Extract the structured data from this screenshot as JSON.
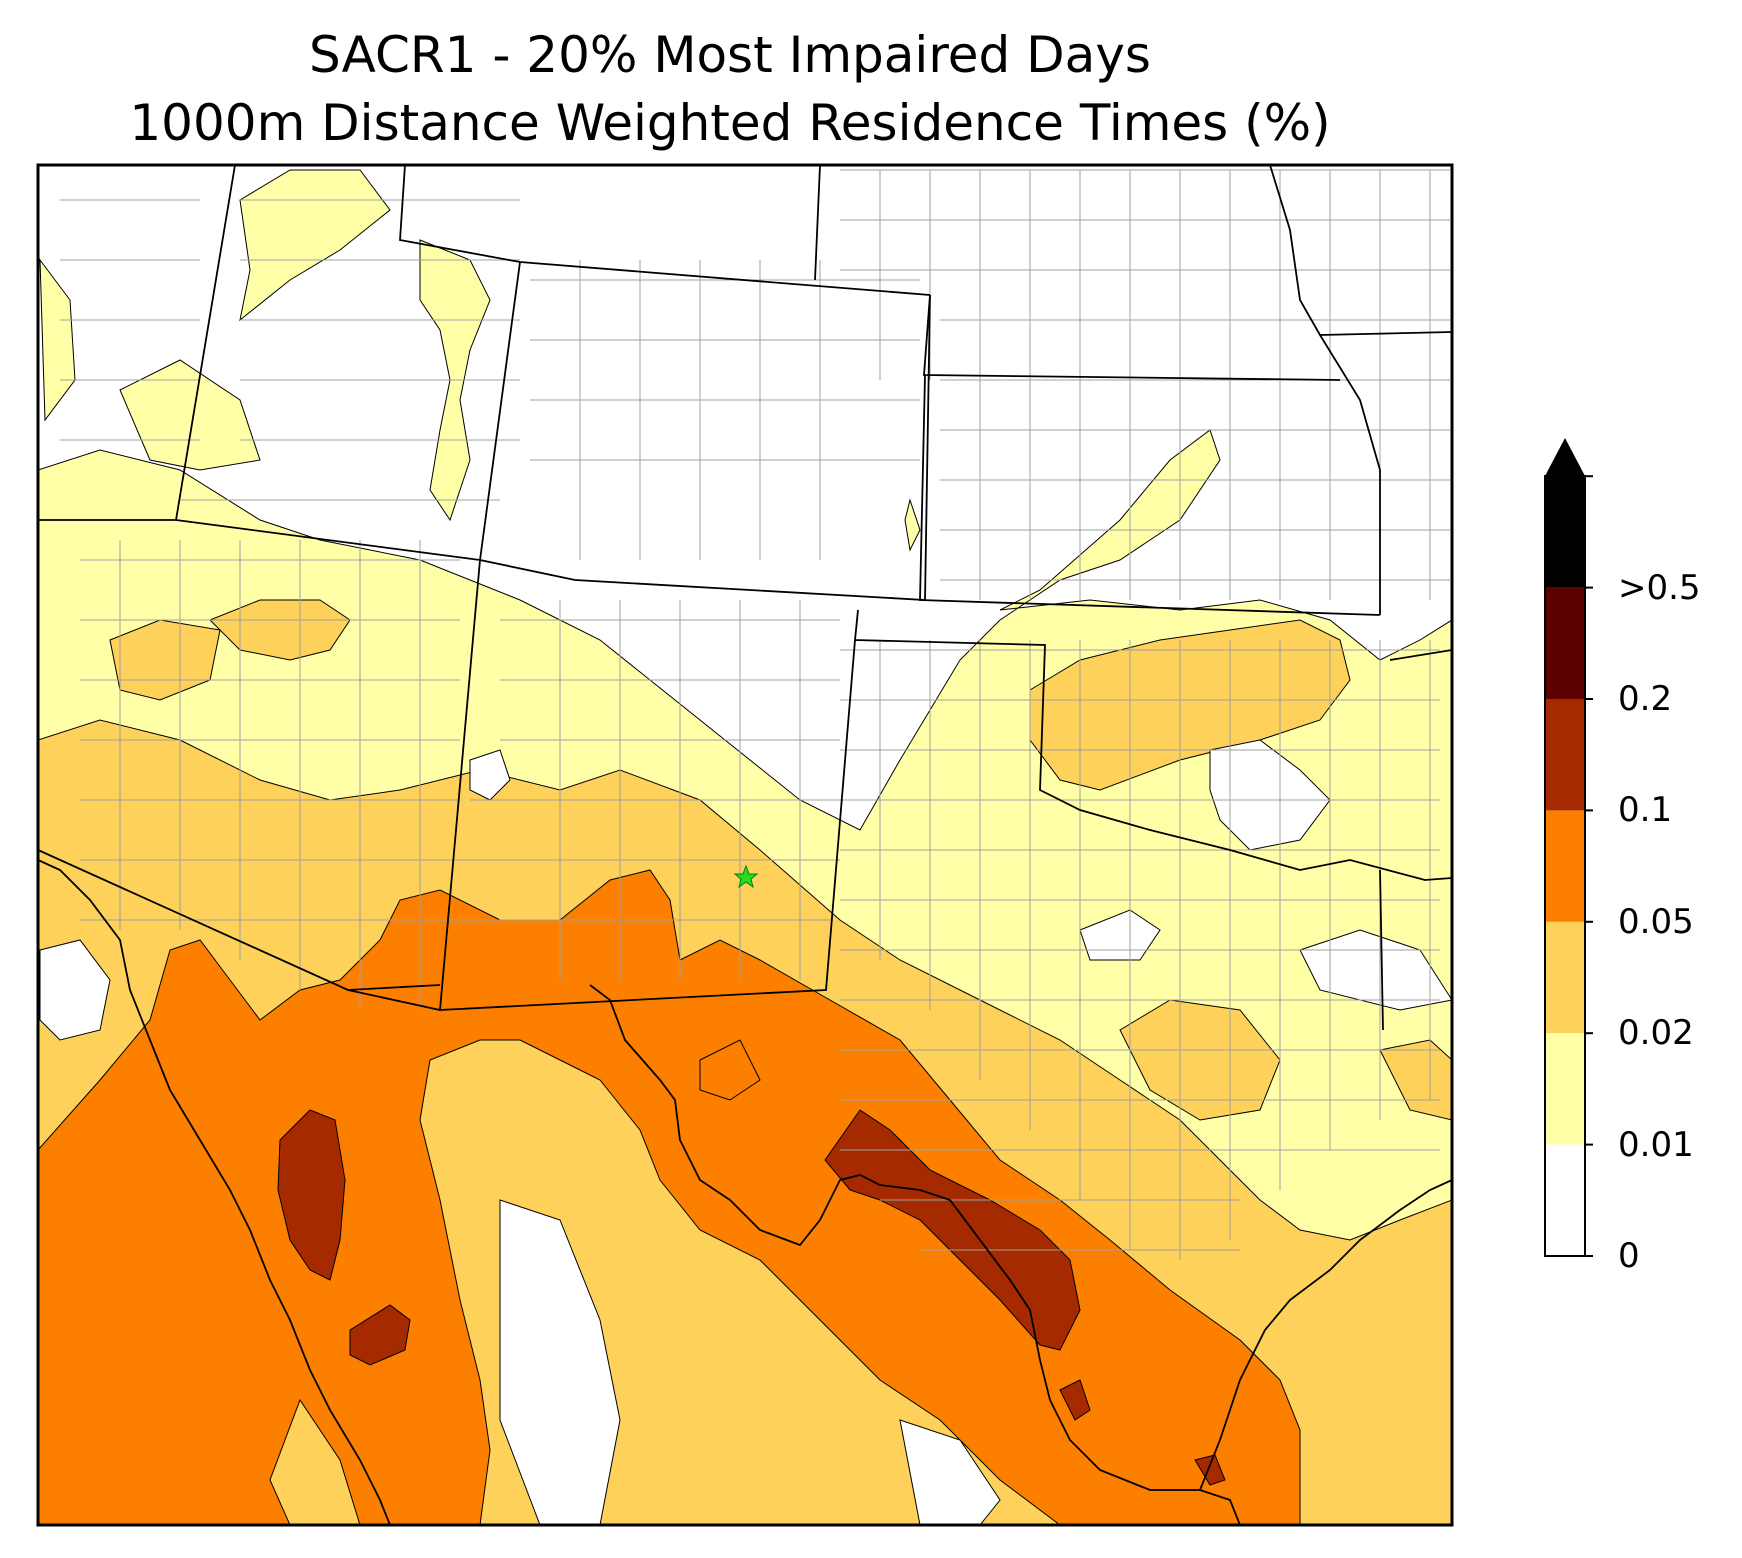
{
  "title": {
    "line1": "SACR1 - 20% Most Impaired Days",
    "line2": "1000m Distance Weighted Residence Times (%)"
  },
  "colorbar": {
    "extend": "max",
    "bins": [
      {
        "label": "0",
        "color": "#ffffff"
      },
      {
        "label": "0.01",
        "color": "#ffffa8"
      },
      {
        "label": "0.02",
        "color": "#fdd15a"
      },
      {
        "label": "0.05",
        "color": "#fc7f00"
      },
      {
        "label": "0.1",
        "color": "#a52a00"
      },
      {
        "label": "0.2",
        "color": "#5c0000"
      },
      {
        "label": ">0.5",
        "color": "#000000"
      }
    ]
  },
  "marker": {
    "symbol": "star",
    "color": "#22dd22"
  },
  "colors": {
    "state_border": "#000000",
    "county_border": "#a0a0a0",
    "contour_line": "#000000"
  }
}
